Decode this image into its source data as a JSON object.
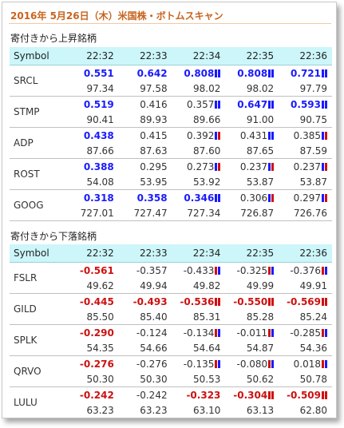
{
  "title": "2016年 5月26日（木）米国株・ボトムスキャン",
  "colors": {
    "up_bold": "#1a1aff",
    "down_bold": "#cc1111",
    "bar_blue": "#1a1aff",
    "bar_red": "#d01010",
    "header_bg": "#ccf6fa",
    "title": "#c8641e"
  },
  "gainers": {
    "label": "寄付きから上昇銘柄",
    "columns": [
      "Symbol",
      "22:32",
      "22:33",
      "22:34",
      "22:35",
      "22:36"
    ],
    "rows": [
      {
        "symbol": "SRCL",
        "changes": [
          {
            "v": "0.551",
            "bold": true
          },
          {
            "v": "0.642",
            "bold": true
          },
          {
            "v": "0.808",
            "bold": true,
            "bars": [
              "blue",
              "blue"
            ]
          },
          {
            "v": "0.808",
            "bold": true,
            "bars": [
              "blue",
              "blue"
            ]
          },
          {
            "v": "0.721",
            "bold": true,
            "bars": [
              "blue",
              "blue"
            ]
          }
        ],
        "prices": [
          "97.34",
          "97.58",
          "98.02",
          "98.02",
          "97.79"
        ]
      },
      {
        "symbol": "STMP",
        "changes": [
          {
            "v": "0.519",
            "bold": true
          },
          {
            "v": "0.416",
            "bold": false
          },
          {
            "v": "0.357",
            "bold": false,
            "bars": [
              "blue",
              "blue"
            ]
          },
          {
            "v": "0.647",
            "bold": true,
            "bars": [
              "blue",
              "blue"
            ]
          },
          {
            "v": "0.593",
            "bold": true,
            "bars": [
              "blue",
              "blue"
            ]
          }
        ],
        "prices": [
          "90.41",
          "89.93",
          "89.66",
          "91.00",
          "90.75"
        ]
      },
      {
        "symbol": "ADP",
        "changes": [
          {
            "v": "0.438",
            "bold": true
          },
          {
            "v": "0.415",
            "bold": false
          },
          {
            "v": "0.392",
            "bold": false,
            "bars": [
              "blue",
              "red"
            ]
          },
          {
            "v": "0.431",
            "bold": false,
            "bars": [
              "blue",
              "blue"
            ]
          },
          {
            "v": "0.385",
            "bold": false,
            "bars": [
              "blue",
              "red"
            ]
          }
        ],
        "prices": [
          "87.66",
          "87.63",
          "87.60",
          "87.65",
          "87.59"
        ]
      },
      {
        "symbol": "ROST",
        "changes": [
          {
            "v": "0.388",
            "bold": true
          },
          {
            "v": "0.295",
            "bold": false
          },
          {
            "v": "0.273",
            "bold": false,
            "bars": [
              "blue",
              "red"
            ]
          },
          {
            "v": "0.237",
            "bold": false,
            "bars": [
              "blue",
              "red"
            ]
          },
          {
            "v": "0.237",
            "bold": false,
            "bars": [
              "blue",
              "red"
            ]
          }
        ],
        "prices": [
          "54.08",
          "53.95",
          "53.92",
          "53.87",
          "53.87"
        ]
      },
      {
        "symbol": "GOOG",
        "changes": [
          {
            "v": "0.318",
            "bold": true
          },
          {
            "v": "0.358",
            "bold": true
          },
          {
            "v": "0.346",
            "bold": true,
            "bars": [
              "blue",
              "blue"
            ]
          },
          {
            "v": "0.306",
            "bold": false,
            "bars": [
              "blue",
              "red"
            ]
          },
          {
            "v": "0.297",
            "bold": false,
            "bars": [
              "blue",
              "red"
            ]
          }
        ],
        "prices": [
          "727.01",
          "727.47",
          "727.34",
          "726.87",
          "726.76"
        ]
      }
    ]
  },
  "losers": {
    "label": "寄付きから下落銘柄",
    "columns": [
      "Symbol",
      "22:32",
      "22:33",
      "22:34",
      "22:35",
      "22:36"
    ],
    "rows": [
      {
        "symbol": "FSLR",
        "changes": [
          {
            "v": "-0.561",
            "bold": true
          },
          {
            "v": "-0.357",
            "bold": false
          },
          {
            "v": "-0.433",
            "bold": false,
            "bars": [
              "red",
              "blue"
            ]
          },
          {
            "v": "-0.325",
            "bold": false,
            "bars": [
              "red",
              "blue"
            ]
          },
          {
            "v": "-0.376",
            "bold": false,
            "bars": [
              "red",
              "blue"
            ]
          }
        ],
        "prices": [
          "49.62",
          "49.94",
          "49.82",
          "49.99",
          "49.91"
        ]
      },
      {
        "symbol": "GILD",
        "changes": [
          {
            "v": "-0.445",
            "bold": true
          },
          {
            "v": "-0.493",
            "bold": true
          },
          {
            "v": "-0.536",
            "bold": true,
            "bars": [
              "red",
              "red"
            ]
          },
          {
            "v": "-0.550",
            "bold": true,
            "bars": [
              "red",
              "red"
            ]
          },
          {
            "v": "-0.569",
            "bold": true,
            "bars": [
              "red",
              "red"
            ]
          }
        ],
        "prices": [
          "85.50",
          "85.40",
          "85.31",
          "85.28",
          "85.24"
        ]
      },
      {
        "symbol": "SPLK",
        "changes": [
          {
            "v": "-0.290",
            "bold": true
          },
          {
            "v": "-0.124",
            "bold": false
          },
          {
            "v": "-0.134",
            "bold": false,
            "bars": [
              "red",
              "blue"
            ]
          },
          {
            "v": "-0.011",
            "bold": false,
            "bars": [
              "red",
              "blue"
            ]
          },
          {
            "v": "-0.285",
            "bold": false,
            "bars": [
              "red",
              "blue"
            ]
          }
        ],
        "prices": [
          "54.35",
          "54.66",
          "54.64",
          "54.87",
          "54.36"
        ]
      },
      {
        "symbol": "QRVO",
        "changes": [
          {
            "v": "-0.276",
            "bold": true
          },
          {
            "v": "-0.276",
            "bold": false
          },
          {
            "v": "-0.135",
            "bold": false,
            "bars": [
              "red",
              "blue"
            ]
          },
          {
            "v": "-0.080",
            "bold": false,
            "bars": [
              "red",
              "blue"
            ]
          },
          {
            "v": "0.018",
            "bold": false,
            "bars": [
              "red",
              "blue"
            ]
          }
        ],
        "prices": [
          "50.30",
          "50.30",
          "50.53",
          "50.62",
          "50.78"
        ]
      },
      {
        "symbol": "LULU",
        "changes": [
          {
            "v": "-0.242",
            "bold": true
          },
          {
            "v": "-0.242",
            "bold": false
          },
          {
            "v": "-0.323",
            "bold": true
          },
          {
            "v": "-0.304",
            "bold": true,
            "bars": [
              "red",
              "red"
            ]
          },
          {
            "v": "-0.509",
            "bold": true,
            "bars": [
              "red",
              "red"
            ]
          }
        ],
        "prices": [
          "63.23",
          "63.23",
          "63.10",
          "63.13",
          "62.80"
        ]
      }
    ]
  }
}
